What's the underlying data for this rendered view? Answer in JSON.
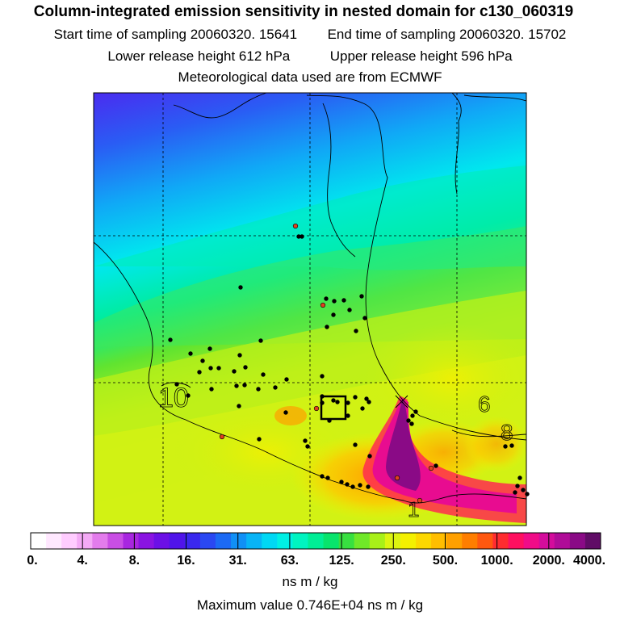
{
  "header": {
    "title": "Column-integrated emission sensitivity in nested domain for c130_060319",
    "start_label": "Start time of sampling 20060320. 15641",
    "end_label": "End time of sampling 20060320. 15702",
    "lower_label": "Lower release height  612 hPa",
    "upper_label": "Upper release height  596 hPa",
    "met_label": "Meteorological data used are from ECMWF"
  },
  "colorbar": {
    "tick_labels": [
      "0.",
      "4.",
      "8.",
      "16.",
      "31.",
      "63.",
      "125.",
      "250.",
      "500.",
      "1000.",
      "2000.",
      "4000."
    ],
    "colors": [
      "#ffffff",
      "#ffe8ff",
      "#ffccff",
      "#f4aaf6",
      "#e37cec",
      "#c94ee4",
      "#a826e0",
      "#8a14e2",
      "#6c10e6",
      "#5014ea",
      "#3a28ee",
      "#2a48f2",
      "#1c6af4",
      "#1090f6",
      "#08b4f6",
      "#00d8f4",
      "#00f0e4",
      "#00f4c0",
      "#00ee96",
      "#08e46c",
      "#38e040",
      "#70e828",
      "#a8f018",
      "#dcf410",
      "#f4f000",
      "#fcd800",
      "#ffbe00",
      "#ffa000",
      "#ff7e00",
      "#ff5810",
      "#ff2c30",
      "#ff1060",
      "#f00c88",
      "#d40c9c",
      "#b00c98",
      "#8a0a86",
      "#600c66"
    ],
    "units": "ns m / kg",
    "max_value": "Maximum value  0.746E+04 ns m / kg"
  },
  "map_labels": {
    "contour_a": "10",
    "contour_b": "6",
    "contour_c": "8",
    "contour_d": "1"
  }
}
